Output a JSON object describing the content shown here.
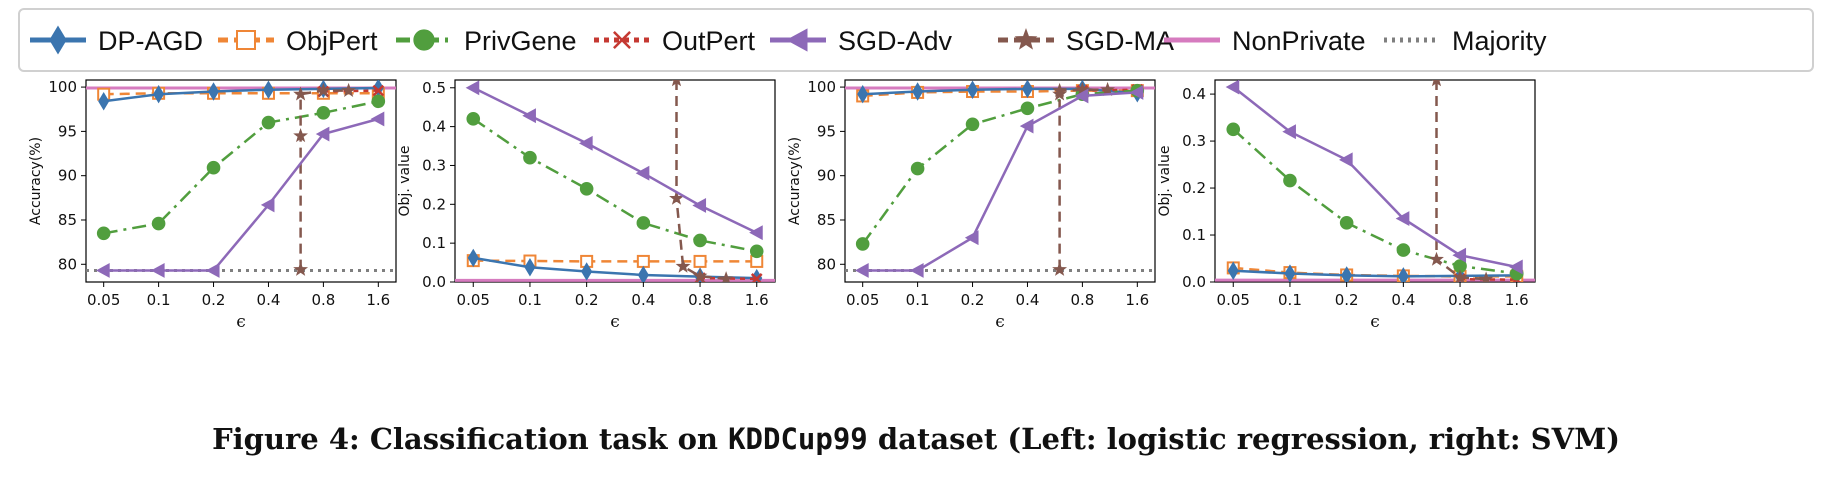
{
  "legend": [
    {
      "name": "DP-AGD",
      "color": "#3b75af",
      "dash": "",
      "marker": "diamond",
      "fill": "#3b75af"
    },
    {
      "name": "ObjPert",
      "color": "#ef8636",
      "dash": "10,6",
      "marker": "square",
      "fill": "none"
    },
    {
      "name": "PrivGene",
      "color": "#519e3e",
      "dash": "14,6,3,6",
      "marker": "circle",
      "fill": "#519e3e"
    },
    {
      "name": "OutPert",
      "color": "#c53932",
      "dash": "5,5",
      "marker": "x",
      "fill": "none"
    },
    {
      "name": "SGD-Adv",
      "color": "#8d69b8",
      "dash": "",
      "marker": "triangle-left",
      "fill": "#8d69b8"
    },
    {
      "name": "SGD-MA",
      "color": "#84584e",
      "dash": "10,6",
      "marker": "star",
      "fill": "#84584e"
    },
    {
      "name": "NonPrivate",
      "color": "#d67bbf",
      "dash": "",
      "marker": "none",
      "fill": "none"
    },
    {
      "name": "Majority",
      "color": "#7f7f7f",
      "dash": "3,5",
      "marker": "none",
      "fill": "none"
    }
  ],
  "caption": {
    "prefix": "Figure 4: Classification task on ",
    "dataset": "KDDCup99",
    "suffix": " dataset (Left: logistic regression, right: SVM)"
  },
  "chart_data": [
    {
      "type": "line",
      "xlabel": "ϵ",
      "ylabel": "Accuracy(%)",
      "x": [
        0.05,
        0.1,
        0.2,
        0.4,
        0.8,
        1.6
      ],
      "xticks": [
        "0.05",
        "0.1",
        "0.2",
        "0.4",
        "0.8",
        "1.6"
      ],
      "ylim": [
        78,
        100.8
      ],
      "yticks": [
        80,
        85,
        90,
        95,
        100
      ],
      "series": [
        {
          "name": "DP-AGD",
          "x": [
            0.05,
            0.1,
            0.2,
            0.4,
            0.8,
            1.6
          ],
          "values": [
            98.4,
            99.2,
            99.5,
            99.7,
            99.8,
            99.9
          ]
        },
        {
          "name": "ObjPert",
          "x": [
            0.05,
            0.1,
            0.2,
            0.4,
            0.8,
            1.6
          ],
          "values": [
            99.2,
            99.3,
            99.3,
            99.3,
            99.3,
            99.3
          ]
        },
        {
          "name": "PrivGene",
          "x": [
            0.05,
            0.1,
            0.2,
            0.4,
            0.8,
            1.6
          ],
          "values": [
            83.5,
            84.6,
            90.9,
            96.0,
            97.1,
            98.4
          ]
        },
        {
          "name": "OutPert",
          "x": [
            0.8,
            1.6
          ],
          "values": [
            99.5,
            99.6
          ]
        },
        {
          "name": "SGD-Adv",
          "x": [
            0.05,
            0.1,
            0.2,
            0.4,
            0.8,
            1.6
          ],
          "values": [
            79.3,
            79.3,
            79.3,
            86.7,
            94.7,
            96.4
          ]
        },
        {
          "name": "SGD-MA",
          "x": [
            0.6,
            0.6,
            0.6,
            0.8,
            1.1
          ],
          "values": [
            79.4,
            94.5,
            99.2,
            99.6,
            99.6
          ]
        },
        {
          "name": "NonPrivate",
          "x": [
            0.04,
            2.1
          ],
          "values": [
            99.9,
            99.9
          ]
        },
        {
          "name": "Majority",
          "x": [
            0.04,
            2.1
          ],
          "values": [
            79.3,
            79.3
          ]
        }
      ]
    },
    {
      "type": "line",
      "xlabel": "ϵ",
      "ylabel": "Obj. value",
      "x": [
        0.05,
        0.1,
        0.2,
        0.4,
        0.8,
        1.6
      ],
      "xticks": [
        "0.05",
        "0.1",
        "0.2",
        "0.4",
        "0.8",
        "1.6"
      ],
      "ylim": [
        0,
        0.52
      ],
      "yticks": [
        0.0,
        0.1,
        0.2,
        0.3,
        0.4,
        0.5
      ],
      "series": [
        {
          "name": "DP-AGD",
          "x": [
            0.05,
            0.1,
            0.2,
            0.4,
            0.8,
            1.6
          ],
          "values": [
            0.062,
            0.038,
            0.027,
            0.018,
            0.014,
            0.01
          ]
        },
        {
          "name": "ObjPert",
          "x": [
            0.05,
            0.1,
            0.2,
            0.4,
            0.8,
            1.6
          ],
          "values": [
            0.055,
            0.054,
            0.053,
            0.053,
            0.053,
            0.053
          ]
        },
        {
          "name": "PrivGene",
          "x": [
            0.05,
            0.1,
            0.2,
            0.4,
            0.8,
            1.6
          ],
          "values": [
            0.42,
            0.32,
            0.24,
            0.152,
            0.107,
            0.079
          ]
        },
        {
          "name": "OutPert",
          "x": [
            0.8,
            1.6
          ],
          "values": [
            0.01,
            0.008
          ]
        },
        {
          "name": "SGD-Adv",
          "x": [
            0.05,
            0.1,
            0.2,
            0.4,
            0.8,
            1.6
          ],
          "values": [
            0.5,
            0.428,
            0.357,
            0.28,
            0.197,
            0.127
          ]
        },
        {
          "name": "SGD-MA",
          "x": [
            0.6,
            0.6,
            0.65,
            0.8,
            1.1
          ],
          "values": [
            0.52,
            0.215,
            0.04,
            0.015,
            0.008
          ]
        },
        {
          "name": "NonPrivate",
          "x": [
            0.04,
            2.1
          ],
          "values": [
            0.004,
            0.004
          ]
        }
      ]
    },
    {
      "type": "line",
      "xlabel": "ϵ",
      "ylabel": "Accuracy(%)",
      "x": [
        0.05,
        0.1,
        0.2,
        0.4,
        0.8,
        1.6
      ],
      "xticks": [
        "0.05",
        "0.1",
        "0.2",
        "0.4",
        "0.8",
        "1.6"
      ],
      "ylim": [
        78,
        100.8
      ],
      "yticks": [
        80,
        85,
        90,
        95,
        100
      ],
      "series": [
        {
          "name": "DP-AGD",
          "x": [
            0.05,
            0.1,
            0.2,
            0.4,
            0.8,
            1.6
          ],
          "values": [
            99.2,
            99.5,
            99.7,
            99.8,
            99.8,
            99.3
          ]
        },
        {
          "name": "ObjPert",
          "x": [
            0.05,
            0.1,
            0.2,
            0.4,
            0.8,
            1.6
          ],
          "values": [
            99.0,
            99.4,
            99.5,
            99.5,
            99.6,
            99.6
          ]
        },
        {
          "name": "PrivGene",
          "x": [
            0.05,
            0.1,
            0.2,
            0.4,
            0.8,
            1.6
          ],
          "values": [
            82.3,
            90.8,
            95.8,
            97.6,
            99.2,
            99.6
          ]
        },
        {
          "name": "OutPert",
          "x": [
            0.8,
            1.6
          ],
          "values": [
            99.6,
            99.7
          ]
        },
        {
          "name": "SGD-Adv",
          "x": [
            0.05,
            0.1,
            0.2,
            0.4,
            0.8,
            1.6
          ],
          "values": [
            79.3,
            79.3,
            83.0,
            95.6,
            99.0,
            99.4
          ]
        },
        {
          "name": "SGD-MA",
          "x": [
            0.6,
            0.6,
            0.6,
            0.8,
            1.1
          ],
          "values": [
            79.4,
            99.2,
            99.6,
            99.7,
            99.7
          ]
        },
        {
          "name": "NonPrivate",
          "x": [
            0.04,
            2.1
          ],
          "values": [
            99.9,
            99.9
          ]
        },
        {
          "name": "Majority",
          "x": [
            0.04,
            2.1
          ],
          "values": [
            79.3,
            79.3
          ]
        }
      ]
    },
    {
      "type": "line",
      "xlabel": "ϵ",
      "ylabel": "Obj. value",
      "x": [
        0.05,
        0.1,
        0.2,
        0.4,
        0.8,
        1.6
      ],
      "xticks": [
        "0.05",
        "0.1",
        "0.2",
        "0.4",
        "0.8",
        "1.6"
      ],
      "ylim": [
        0,
        0.43
      ],
      "yticks": [
        0.0,
        0.1,
        0.2,
        0.3,
        0.4
      ],
      "series": [
        {
          "name": "DP-AGD",
          "x": [
            0.05,
            0.1,
            0.2,
            0.4,
            0.8,
            1.6
          ],
          "values": [
            0.024,
            0.018,
            0.014,
            0.012,
            0.013,
            0.014
          ]
        },
        {
          "name": "ObjPert",
          "x": [
            0.05,
            0.1,
            0.2,
            0.4,
            0.8,
            1.6
          ],
          "values": [
            0.03,
            0.02,
            0.015,
            0.013,
            0.012,
            0.012
          ]
        },
        {
          "name": "PrivGene",
          "x": [
            0.05,
            0.1,
            0.2,
            0.4,
            0.8,
            1.6
          ],
          "values": [
            0.325,
            0.216,
            0.126,
            0.068,
            0.034,
            0.018
          ]
        },
        {
          "name": "OutPert",
          "x": [
            0.8,
            1.6
          ],
          "values": [
            0.006,
            0.005
          ]
        },
        {
          "name": "SGD-Adv",
          "x": [
            0.05,
            0.1,
            0.2,
            0.4,
            0.8,
            1.6
          ],
          "values": [
            0.415,
            0.32,
            0.26,
            0.135,
            0.057,
            0.032
          ]
        },
        {
          "name": "SGD-MA",
          "x": [
            0.6,
            0.6,
            0.8,
            1.1
          ],
          "values": [
            0.43,
            0.048,
            0.01,
            0.006
          ]
        },
        {
          "name": "NonPrivate",
          "x": [
            0.04,
            2.1
          ],
          "values": [
            0.004,
            0.004
          ]
        }
      ]
    }
  ]
}
